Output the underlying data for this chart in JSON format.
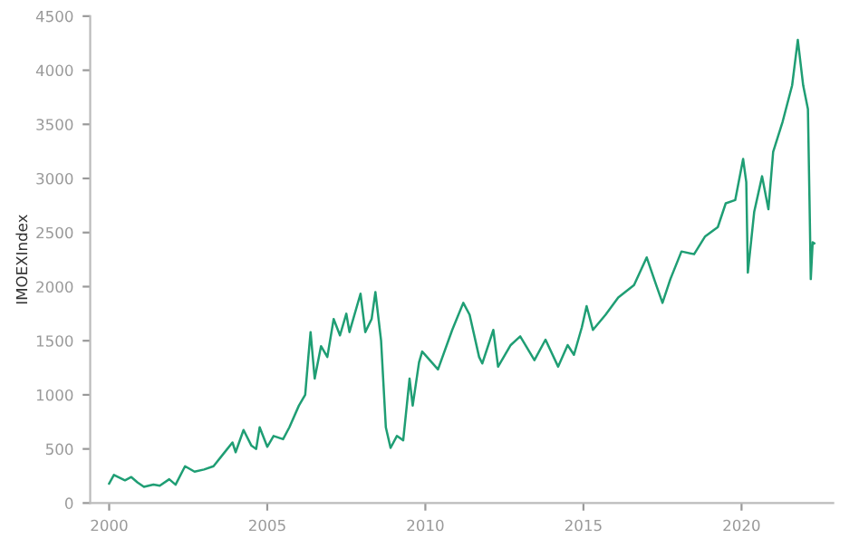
{
  "chart_data": {
    "type": "line",
    "ylabel": "IMOEXIndex",
    "xlim": [
      1999.4,
      2022.9
    ],
    "ylim": [
      0,
      4500
    ],
    "xticks": [
      2000,
      2005,
      2010,
      2015,
      2020
    ],
    "yticks": [
      0,
      500,
      1000,
      1500,
      2000,
      2500,
      3000,
      3500,
      4000,
      4500
    ],
    "grid": false,
    "legend": false,
    "series": [
      {
        "color": "#1f9e74",
        "x": [
          2000.0,
          2000.15,
          2000.5,
          2000.7,
          2000.9,
          2001.1,
          2001.4,
          2001.6,
          2001.9,
          2002.1,
          2002.4,
          2002.7,
          2003.0,
          2003.3,
          2003.6,
          2003.9,
          2004.0,
          2004.25,
          2004.5,
          2004.65,
          2004.76,
          2005.0,
          2005.2,
          2005.5,
          2005.7,
          2006.0,
          2006.2,
          2006.3,
          2006.37,
          2006.5,
          2006.7,
          2006.9,
          2007.1,
          2007.3,
          2007.5,
          2007.6,
          2007.95,
          2008.1,
          2008.3,
          2008.42,
          2008.6,
          2008.75,
          2008.9,
          2009.1,
          2009.3,
          2009.5,
          2009.6,
          2009.8,
          2009.9,
          2010.4,
          2010.85,
          2011.2,
          2011.4,
          2011.7,
          2011.8,
          2012.15,
          2012.3,
          2012.7,
          2013.0,
          2013.45,
          2013.8,
          2014.2,
          2014.5,
          2014.7,
          2014.95,
          2015.1,
          2015.3,
          2015.7,
          2016.1,
          2016.6,
          2017.0,
          2017.3,
          2017.5,
          2017.75,
          2018.1,
          2018.5,
          2018.85,
          2019.25,
          2019.5,
          2019.8,
          2020.05,
          2020.15,
          2020.2,
          2020.4,
          2020.65,
          2020.85,
          2021.0,
          2021.3,
          2021.6,
          2021.78,
          2021.95,
          2022.1,
          2022.15,
          2022.19,
          2022.25,
          2022.3
        ],
        "values": [
          180,
          260,
          210,
          240,
          190,
          150,
          170,
          160,
          220,
          170,
          340,
          290,
          310,
          340,
          450,
          560,
          470,
          675,
          530,
          500,
          700,
          520,
          620,
          590,
          700,
          900,
          1000,
          1350,
          1580,
          1150,
          1450,
          1350,
          1700,
          1550,
          1750,
          1580,
          1935,
          1580,
          1700,
          1950,
          1500,
          700,
          510,
          620,
          580,
          1150,
          900,
          1300,
          1400,
          1235,
          1600,
          1850,
          1740,
          1350,
          1290,
          1600,
          1260,
          1460,
          1540,
          1320,
          1510,
          1260,
          1460,
          1370,
          1625,
          1820,
          1600,
          1740,
          1900,
          2015,
          2270,
          2015,
          1850,
          2070,
          2325,
          2300,
          2465,
          2550,
          2770,
          2800,
          3180,
          2965,
          2130,
          2690,
          3020,
          2715,
          3245,
          3525,
          3860,
          4280,
          3860,
          3640,
          2800,
          2070,
          2410,
          2400
        ]
      }
    ]
  }
}
